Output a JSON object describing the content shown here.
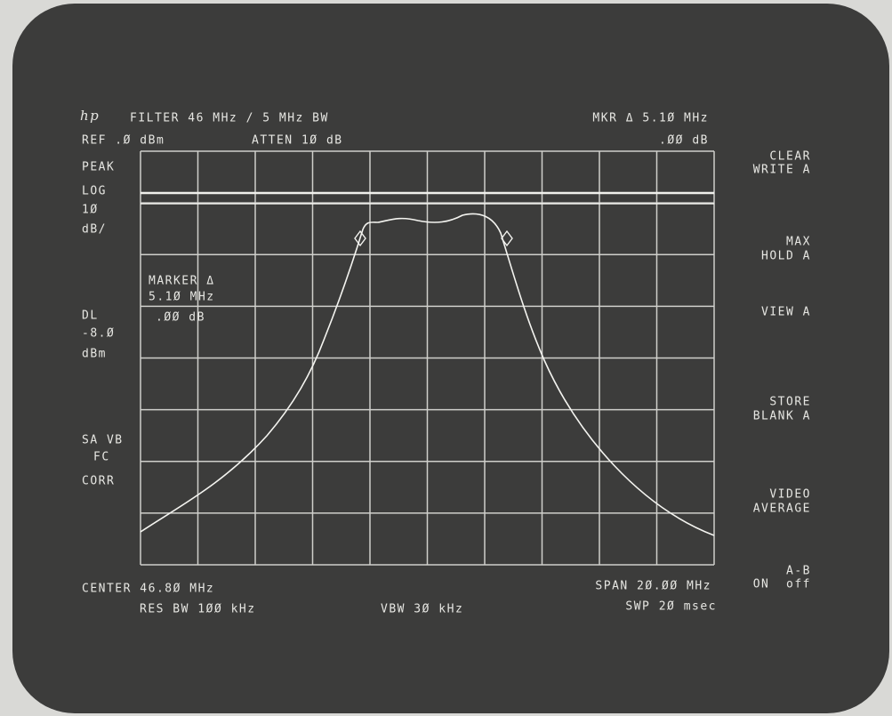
{
  "header": {
    "logo": "hp",
    "filter": "FILTER 46 MHz / 5 MHz BW",
    "marker_readout": "MKR Δ 5.1Ø MHz",
    "ref": "REF .Ø dBm",
    "atten": "ATTEN 1Ø dB",
    "marker_level": ".ØØ dB"
  },
  "left_labels": [
    "PEAK",
    "LOG",
    "1Ø",
    "dB/",
    "DL",
    "-8.Ø",
    "dBm",
    "SA VB",
    "FC",
    "CORR"
  ],
  "marker_note": [
    "MARKER Δ",
    "5.1Ø MHz",
    ".ØØ dB"
  ],
  "softkeys": [
    [
      "CLEAR",
      "WRITE A"
    ],
    [
      "MAX",
      "HOLD A"
    ],
    [
      "VIEW A"
    ],
    [
      "STORE",
      "BLANK A"
    ],
    [
      "VIDEO",
      "AVERAGE"
    ],
    [
      "A-B",
      "ON  off"
    ]
  ],
  "footer": {
    "center": "CENTER 46.8Ø MHz",
    "span": "SPAN 2Ø.ØØ MHz",
    "res_bw": "RES BW 1ØØ kHz",
    "vbw": "VBW 3Ø kHz",
    "sweep": "SWP 2Ø msec"
  }
}
